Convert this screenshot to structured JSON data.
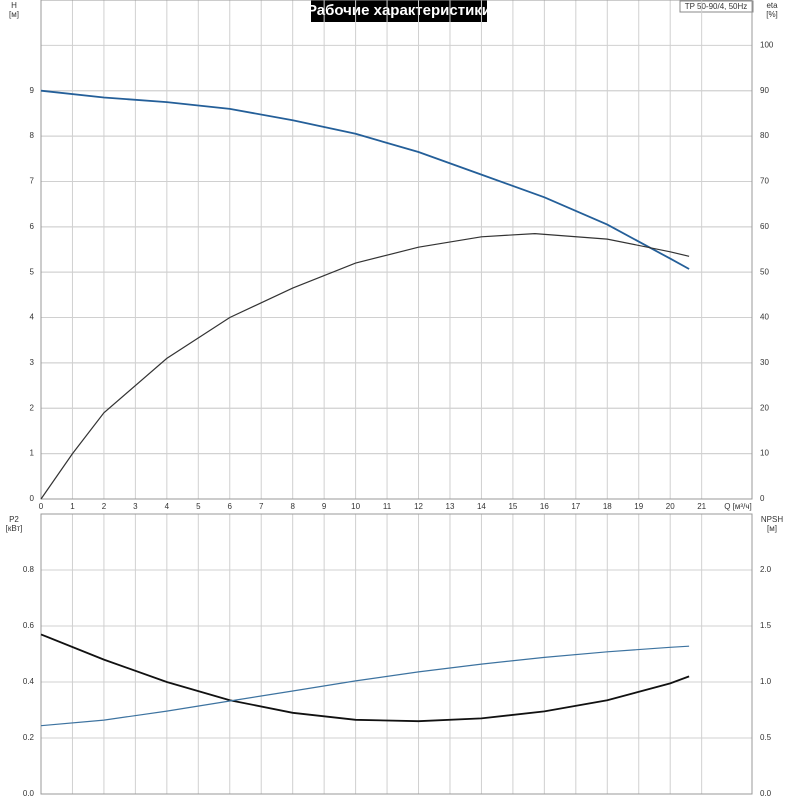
{
  "chart_data": [
    {
      "type": "line",
      "title": "Рабочие характеристики",
      "model": "TP 50-90/4, 50Hz",
      "ylabel": [
        "H",
        "[м]"
      ],
      "y2label": [
        "eta",
        "[%]"
      ],
      "xlabel": "Q [м³/ч]",
      "xlim": [
        0,
        22.6
      ],
      "xticks": [
        0,
        1,
        2,
        3,
        4,
        5,
        6,
        7,
        8,
        9,
        10,
        11,
        12,
        13,
        14,
        15,
        16,
        17,
        18,
        19,
        20,
        21
      ],
      "ylim": [
        0,
        11
      ],
      "yticks": [
        0,
        1,
        2,
        3,
        4,
        5,
        6,
        7,
        8,
        9
      ],
      "y2lim": [
        0,
        110
      ],
      "y2ticks": [
        0,
        10,
        20,
        30,
        40,
        50,
        60,
        70,
        80,
        90,
        100
      ],
      "grid": true,
      "series": [
        {
          "name": "H",
          "color": "#245f99",
          "x": [
            0,
            2,
            4,
            6,
            8,
            10,
            12,
            14,
            16,
            18,
            20,
            20.6
          ],
          "values": [
            9,
            8.85,
            8.75,
            8.6,
            8.35,
            8.05,
            7.65,
            7.15,
            6.65,
            6.05,
            5.3,
            5.07
          ]
        },
        {
          "name": "eta",
          "color": "#333333",
          "axis": "y2",
          "x": [
            0,
            1,
            2,
            4,
            6,
            8,
            10,
            12,
            14,
            15.7,
            18,
            20,
            20.6
          ],
          "values": [
            0,
            10,
            19,
            31,
            40,
            46.5,
            52,
            55.5,
            57.8,
            58.5,
            57.3,
            54.5,
            53.5
          ]
        }
      ]
    },
    {
      "type": "line",
      "ylabel": [
        "P2",
        "[кВт]"
      ],
      "y2label": [
        "NPSH",
        "[м]"
      ],
      "xlim": [
        0,
        22.6
      ],
      "ylim": [
        0,
        1.0
      ],
      "yticks": [
        {
          "value": 0,
          "label": "0.0"
        },
        0.2,
        0.4,
        0.6,
        0.8
      ],
      "y2lim": [
        0,
        2.5
      ],
      "y2ticks": [
        {
          "value": 0,
          "label": "0.0"
        },
        0.5,
        {
          "value": 1,
          "label": "1.0"
        },
        1.5,
        {
          "value": 2,
          "label": "2.0"
        }
      ],
      "grid": true,
      "series": [
        {
          "name": "P2",
          "color": "#111111",
          "x": [
            0,
            2,
            4,
            6,
            8,
            10,
            12,
            14,
            16,
            18,
            20,
            20.6
          ],
          "values": [
            0.57,
            0.48,
            0.4,
            0.335,
            0.29,
            0.265,
            0.26,
            0.27,
            0.295,
            0.335,
            0.395,
            0.42
          ]
        },
        {
          "name": "NPSH",
          "color": "#3d73a0",
          "axis": "y2",
          "x": [
            0,
            2,
            4,
            6,
            8,
            10,
            12,
            14,
            16,
            18,
            20,
            20.6
          ],
          "values": [
            0.61,
            0.66,
            0.74,
            0.83,
            0.92,
            1.01,
            1.09,
            1.16,
            1.22,
            1.27,
            1.31,
            1.32
          ]
        }
      ]
    }
  ]
}
